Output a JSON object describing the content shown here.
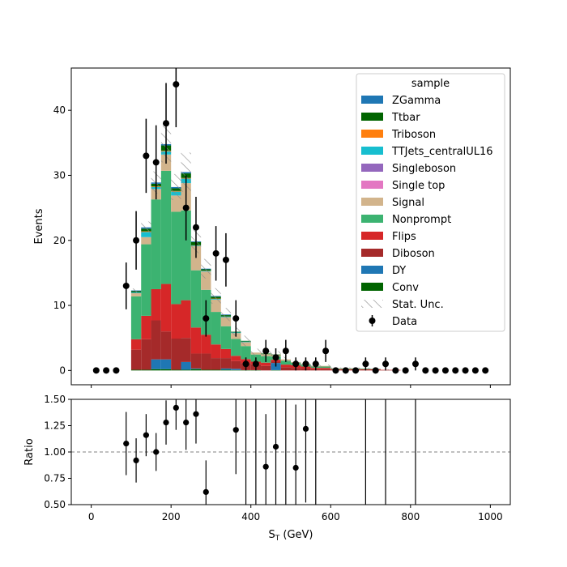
{
  "chart_data": [
    {
      "type": "bar",
      "stacked": true,
      "xlabel": "S_T (GeV)",
      "ylabel": "Events",
      "xlim": [
        -50,
        1050
      ],
      "ylim": [
        -2.2,
        46.5
      ],
      "yticks": [
        0,
        10,
        20,
        30,
        40
      ],
      "xticks": [
        0,
        200,
        400,
        600,
        800,
        1000
      ],
      "bin_edges": [
        0,
        25,
        50,
        75,
        100,
        125,
        150,
        175,
        200,
        225,
        250,
        275,
        300,
        325,
        350,
        375,
        400,
        425,
        450,
        475,
        500,
        525,
        550,
        575,
        600,
        625,
        650,
        675,
        700,
        725,
        750,
        775,
        800,
        825,
        850,
        875,
        900,
        925,
        950,
        975,
        1000
      ],
      "legend": {
        "title": "sample",
        "position": "upper right",
        "entries": [
          "ZGamma",
          "Ttbar",
          "Triboson",
          "TTJets_centralUL16",
          "Singleboson",
          "Single top",
          "Signal",
          "Nonprompt",
          "Flips",
          "Diboson",
          "DY",
          "Conv",
          "Stat. Unc.",
          "Data"
        ]
      },
      "series": [
        {
          "name": "Conv",
          "color": "#006400",
          "values": [
            0,
            0,
            0,
            0,
            0.1,
            0.1,
            0.2,
            0.2,
            0.1,
            0.1,
            0.2,
            0.1,
            0.1,
            0.1,
            0.05,
            0.05,
            0.05,
            0,
            0.05,
            0,
            0,
            0,
            0,
            0,
            0,
            0,
            0,
            0,
            0,
            0,
            0,
            0,
            0,
            0,
            0,
            0,
            0,
            0,
            0,
            0
          ]
        },
        {
          "name": "DY",
          "color": "#1f77b4",
          "values": [
            0,
            0,
            0,
            0,
            0,
            0,
            1.5,
            1.5,
            0,
            1.2,
            0.1,
            0,
            0,
            0.2,
            0.2,
            0,
            0,
            0,
            1.1,
            0,
            0,
            0,
            0,
            0,
            0,
            0,
            0,
            0,
            0,
            0,
            0,
            0,
            0,
            0,
            0,
            0,
            0,
            0,
            0,
            0
          ]
        },
        {
          "name": "Diboson",
          "color": "#a52a2a",
          "values": [
            0,
            0,
            0,
            0,
            3.1,
            4.7,
            6.0,
            4.3,
            4.8,
            3.7,
            2.3,
            2.5,
            1.8,
            1.6,
            1.2,
            1.1,
            0.9,
            0.7,
            0.2,
            0.5,
            0.4,
            0.3,
            0.2,
            0.2,
            0.1,
            0.1,
            0.1,
            0.1,
            0.1,
            0.05,
            0.05,
            0,
            0,
            0,
            0,
            0,
            0,
            0,
            0,
            0
          ]
        },
        {
          "name": "Flips",
          "color": "#d62728",
          "values": [
            0,
            0,
            0,
            0,
            1.6,
            3.6,
            4.8,
            7.3,
            5.3,
            5.8,
            4.0,
            2.9,
            2.1,
            1.4,
            0.8,
            0.6,
            0.4,
            0.5,
            0.3,
            0.4,
            0.4,
            0.3,
            0.2,
            0.2,
            0.1,
            0.1,
            0.1,
            0.1,
            0.1,
            0.05,
            0.05,
            0,
            0,
            0,
            0,
            0,
            0,
            0,
            0,
            0
          ]
        },
        {
          "name": "Nonprompt",
          "color": "#3cb371",
          "values": [
            0,
            0,
            0,
            0,
            6.6,
            11.0,
            13.8,
            17.4,
            14.2,
            13.8,
            8.8,
            6.9,
            5.0,
            3.5,
            2.6,
            2.0,
            1.1,
            1.0,
            0.5,
            0.6,
            0.4,
            0.3,
            0.2,
            0.2,
            0.1,
            0.1,
            0.1,
            0.1,
            0.05,
            0,
            0,
            0,
            0,
            0,
            0,
            0,
            0,
            0,
            0,
            0
          ]
        },
        {
          "name": "Signal",
          "color": "#d2b48c",
          "values": [
            0,
            0,
            0,
            0,
            0.5,
            1.1,
            1.6,
            2.5,
            2.5,
            4.2,
            3.7,
            2.8,
            1.9,
            1.4,
            0.9,
            0.6,
            0.3,
            0.3,
            0.2,
            0.2,
            0.1,
            0.1,
            0.1,
            0.1,
            0.05,
            0.05,
            0.05,
            0,
            0,
            0,
            0,
            0,
            0,
            0,
            0,
            0,
            0,
            0,
            0,
            0
          ]
        },
        {
          "name": "Single top",
          "color": "#e377c2",
          "values": [
            0,
            0,
            0,
            0,
            0,
            0,
            0,
            0,
            0,
            0,
            0,
            0,
            0,
            0,
            0,
            0,
            0,
            0,
            0,
            0,
            0,
            0,
            0,
            0,
            0,
            0,
            0,
            0,
            0,
            0,
            0,
            0,
            0,
            0,
            0,
            0,
            0,
            0,
            0,
            0
          ]
        },
        {
          "name": "Singleboson",
          "color": "#9467bd",
          "values": [
            0,
            0,
            0,
            0,
            0,
            0,
            0,
            0,
            0,
            0,
            0,
            0,
            0,
            0,
            0,
            0,
            0,
            0,
            0,
            0,
            0,
            0,
            0,
            0,
            0,
            0,
            0,
            0,
            0,
            0,
            0,
            0,
            0,
            0,
            0,
            0,
            0,
            0,
            0,
            0
          ]
        },
        {
          "name": "TTJets_centralUL16",
          "color": "#17becf",
          "values": [
            0,
            0,
            0,
            0,
            0.1,
            0.8,
            0.3,
            0.5,
            0.6,
            0.7,
            0.1,
            0.1,
            0.1,
            0.1,
            0.1,
            0.1,
            0,
            0,
            0,
            0,
            0,
            0,
            0,
            0,
            0,
            0,
            0,
            0,
            0,
            0,
            0,
            0,
            0,
            0,
            0,
            0,
            0,
            0,
            0,
            0
          ]
        },
        {
          "name": "Triboson",
          "color": "#ff7f0e",
          "values": [
            0,
            0,
            0,
            0,
            0,
            0.1,
            0.1,
            0.1,
            0.1,
            0.1,
            0.05,
            0.05,
            0.05,
            0,
            0,
            0,
            0,
            0,
            0,
            0,
            0,
            0,
            0,
            0,
            0,
            0,
            0,
            0,
            0,
            0,
            0,
            0,
            0,
            0,
            0,
            0,
            0,
            0,
            0,
            0
          ]
        },
        {
          "name": "Ttbar",
          "color": "#006400",
          "values": [
            0,
            0,
            0,
            0,
            0.2,
            0.4,
            0.4,
            0.8,
            0.4,
            0.7,
            0.5,
            0.2,
            0.3,
            0.2,
            0.1,
            0.1,
            0,
            0.1,
            0.1,
            0,
            0,
            0,
            0,
            0,
            0,
            0,
            0,
            0,
            0,
            0,
            0,
            0,
            0,
            0,
            0,
            0,
            0,
            0,
            0,
            0
          ]
        },
        {
          "name": "ZGamma",
          "color": "#1f77b4",
          "values": [
            0,
            0,
            0,
            0,
            0.1,
            0.2,
            0.2,
            0.2,
            0.2,
            0.2,
            0.1,
            0.1,
            0.1,
            0.1,
            0,
            0,
            0,
            0,
            0,
            0,
            0,
            0,
            0,
            0,
            0,
            0,
            0,
            0,
            0,
            0,
            0,
            0,
            0,
            0,
            0,
            0,
            0,
            0,
            0,
            0
          ]
        }
      ],
      "stat_unc_halfwidth": [
        0,
        0,
        0,
        0,
        0.3,
        0.9,
        1.7,
        2.8,
        2.0,
        3.0,
        1.8,
        1.5,
        1.2,
        1.0,
        0.8,
        0.8,
        0.6,
        0.6,
        0.5,
        0.4,
        0.3,
        0.3,
        0.2,
        0.2,
        0.1,
        0.1,
        0.1,
        0.1,
        0.1,
        0.1,
        0.1,
        0,
        0,
        0,
        0,
        0,
        0,
        0,
        0,
        0
      ],
      "data": {
        "name": "Data",
        "x": [
          12.5,
          37.5,
          62.5,
          87.5,
          112.5,
          137.5,
          162.5,
          187.5,
          212.5,
          237.5,
          262.5,
          287.5,
          312.5,
          337.5,
          362.5,
          387.5,
          412.5,
          437.5,
          462.5,
          487.5,
          512.5,
          537.5,
          562.5,
          587.5,
          612.5,
          637.5,
          662.5,
          687.5,
          712.5,
          737.5,
          762.5,
          787.5,
          812.5,
          837.5,
          862.5,
          887.5,
          912.5,
          937.5,
          962.5,
          987.5
        ],
        "y": [
          0,
          0,
          0,
          13,
          20,
          33,
          32,
          38,
          44,
          25,
          22,
          8,
          18,
          17,
          8,
          1,
          1,
          3,
          2,
          3,
          1,
          1,
          1,
          3,
          0,
          0,
          0,
          1,
          0,
          1,
          0,
          0,
          1,
          0,
          0,
          0,
          0,
          0,
          0,
          0
        ],
        "yerr": [
          0,
          0,
          0,
          3.6,
          4.5,
          5.7,
          5.7,
          6.2,
          6.6,
          5.0,
          4.7,
          2.8,
          4.2,
          4.1,
          2.8,
          1.0,
          1.0,
          1.7,
          1.4,
          1.7,
          1.0,
          1.0,
          1.0,
          1.7,
          0,
          0,
          0,
          1.0,
          0,
          1.0,
          0,
          0,
          1.0,
          0,
          0,
          0,
          0,
          0,
          0,
          0
        ]
      }
    },
    {
      "type": "scatter",
      "xlabel": "S_T (GeV)",
      "ylabel": "Ratio",
      "xlim": [
        -50,
        1050
      ],
      "ylim": [
        0.5,
        1.5
      ],
      "yticks": [
        0.5,
        0.75,
        1.0,
        1.25,
        1.5
      ],
      "ytick_labels": [
        "0.50",
        "0.75",
        "1.00",
        "1.25",
        "1.50"
      ],
      "xticks": [
        0,
        200,
        400,
        600,
        800,
        1000
      ],
      "reference_line": 1.0,
      "points": {
        "x": [
          87.5,
          112.5,
          137.5,
          162.5,
          187.5,
          212.5,
          237.5,
          262.5,
          287.5,
          362.5,
          387.5,
          412.5,
          437.5,
          462.5,
          487.5,
          512.5,
          537.5,
          562.5,
          687.5,
          737.5,
          812.5
        ],
        "y": [
          1.08,
          0.92,
          1.16,
          1.0,
          1.28,
          1.42,
          1.28,
          1.36,
          0.62,
          1.21,
          null,
          null,
          0.86,
          1.05,
          null,
          0.85,
          1.22,
          null,
          null,
          null,
          null
        ],
        "err_low": [
          0.3,
          0.21,
          0.2,
          0.18,
          0.21,
          0.21,
          0.26,
          0.28,
          0.3,
          0.42,
          0,
          0,
          0.5,
          0.55,
          0,
          0.6,
          0.7,
          0,
          0,
          0,
          0
        ],
        "err_high": [
          0.3,
          0.21,
          0.2,
          0.18,
          0.21,
          0.21,
          0.26,
          0.28,
          0.3,
          0.42,
          0,
          0,
          0.5,
          0.55,
          0,
          0.6,
          0.7,
          0,
          0,
          0,
          0
        ]
      }
    }
  ]
}
